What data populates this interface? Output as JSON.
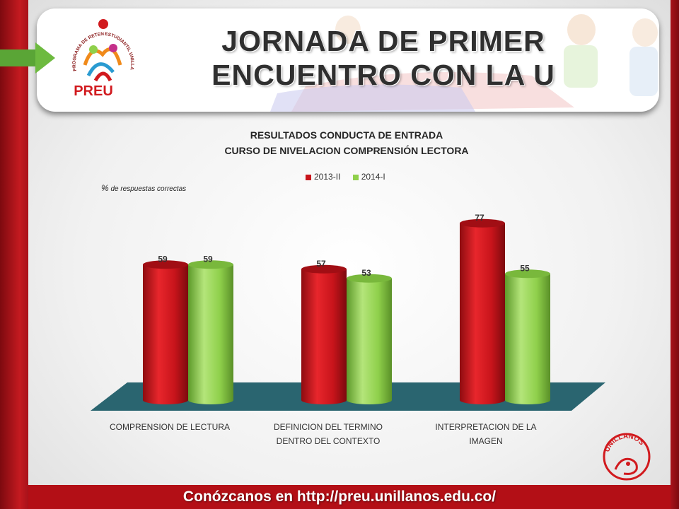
{
  "banner": {
    "title_line1": "JORNADA DE PRIMER",
    "title_line2": "ENCUENTRO CON LA U",
    "logo_text": "PREU",
    "logo_ring_left": "PROGRAMA DE RETENCIÓN",
    "logo_ring_right": "ESTUDIANTIL UNILLANISTA"
  },
  "footer": {
    "text": "Conózcanos en http://preu.unillanos.edu.co/"
  },
  "brand_colors": {
    "red": "#c8141b",
    "green": "#8fd04b",
    "floor": "#2a6570"
  },
  "icons": [
    "arrow-right-icon",
    "preu-logo-icon",
    "unillanos-logo-icon"
  ],
  "unillanos_logo_text": "UNILLANOS",
  "chart_data": {
    "type": "bar",
    "title": "RESULTADOS CONDUCTA DE ENTRADA",
    "subtitle": "CURSO DE NIVELACION COMPRENSIÓN LECTORA",
    "ylabel_symbol": "%",
    "ylabel_text": "de respuestas correctas",
    "categories": [
      [
        "COMPRENSION DE LECTURA"
      ],
      [
        "DEFINICION DEL TERMINO",
        "DENTRO DEL CONTEXTO"
      ],
      [
        "INTERPRETACION DE LA",
        "IMAGEN"
      ]
    ],
    "series": [
      {
        "name": "2013-II",
        "color": "#c8141b",
        "values": [
          59,
          57,
          77
        ]
      },
      {
        "name": "2014-I",
        "color": "#8fd04b",
        "values": [
          59,
          53,
          55
        ]
      }
    ],
    "ylim": [
      0,
      100
    ],
    "legend_position": "top-center",
    "grid": false
  }
}
